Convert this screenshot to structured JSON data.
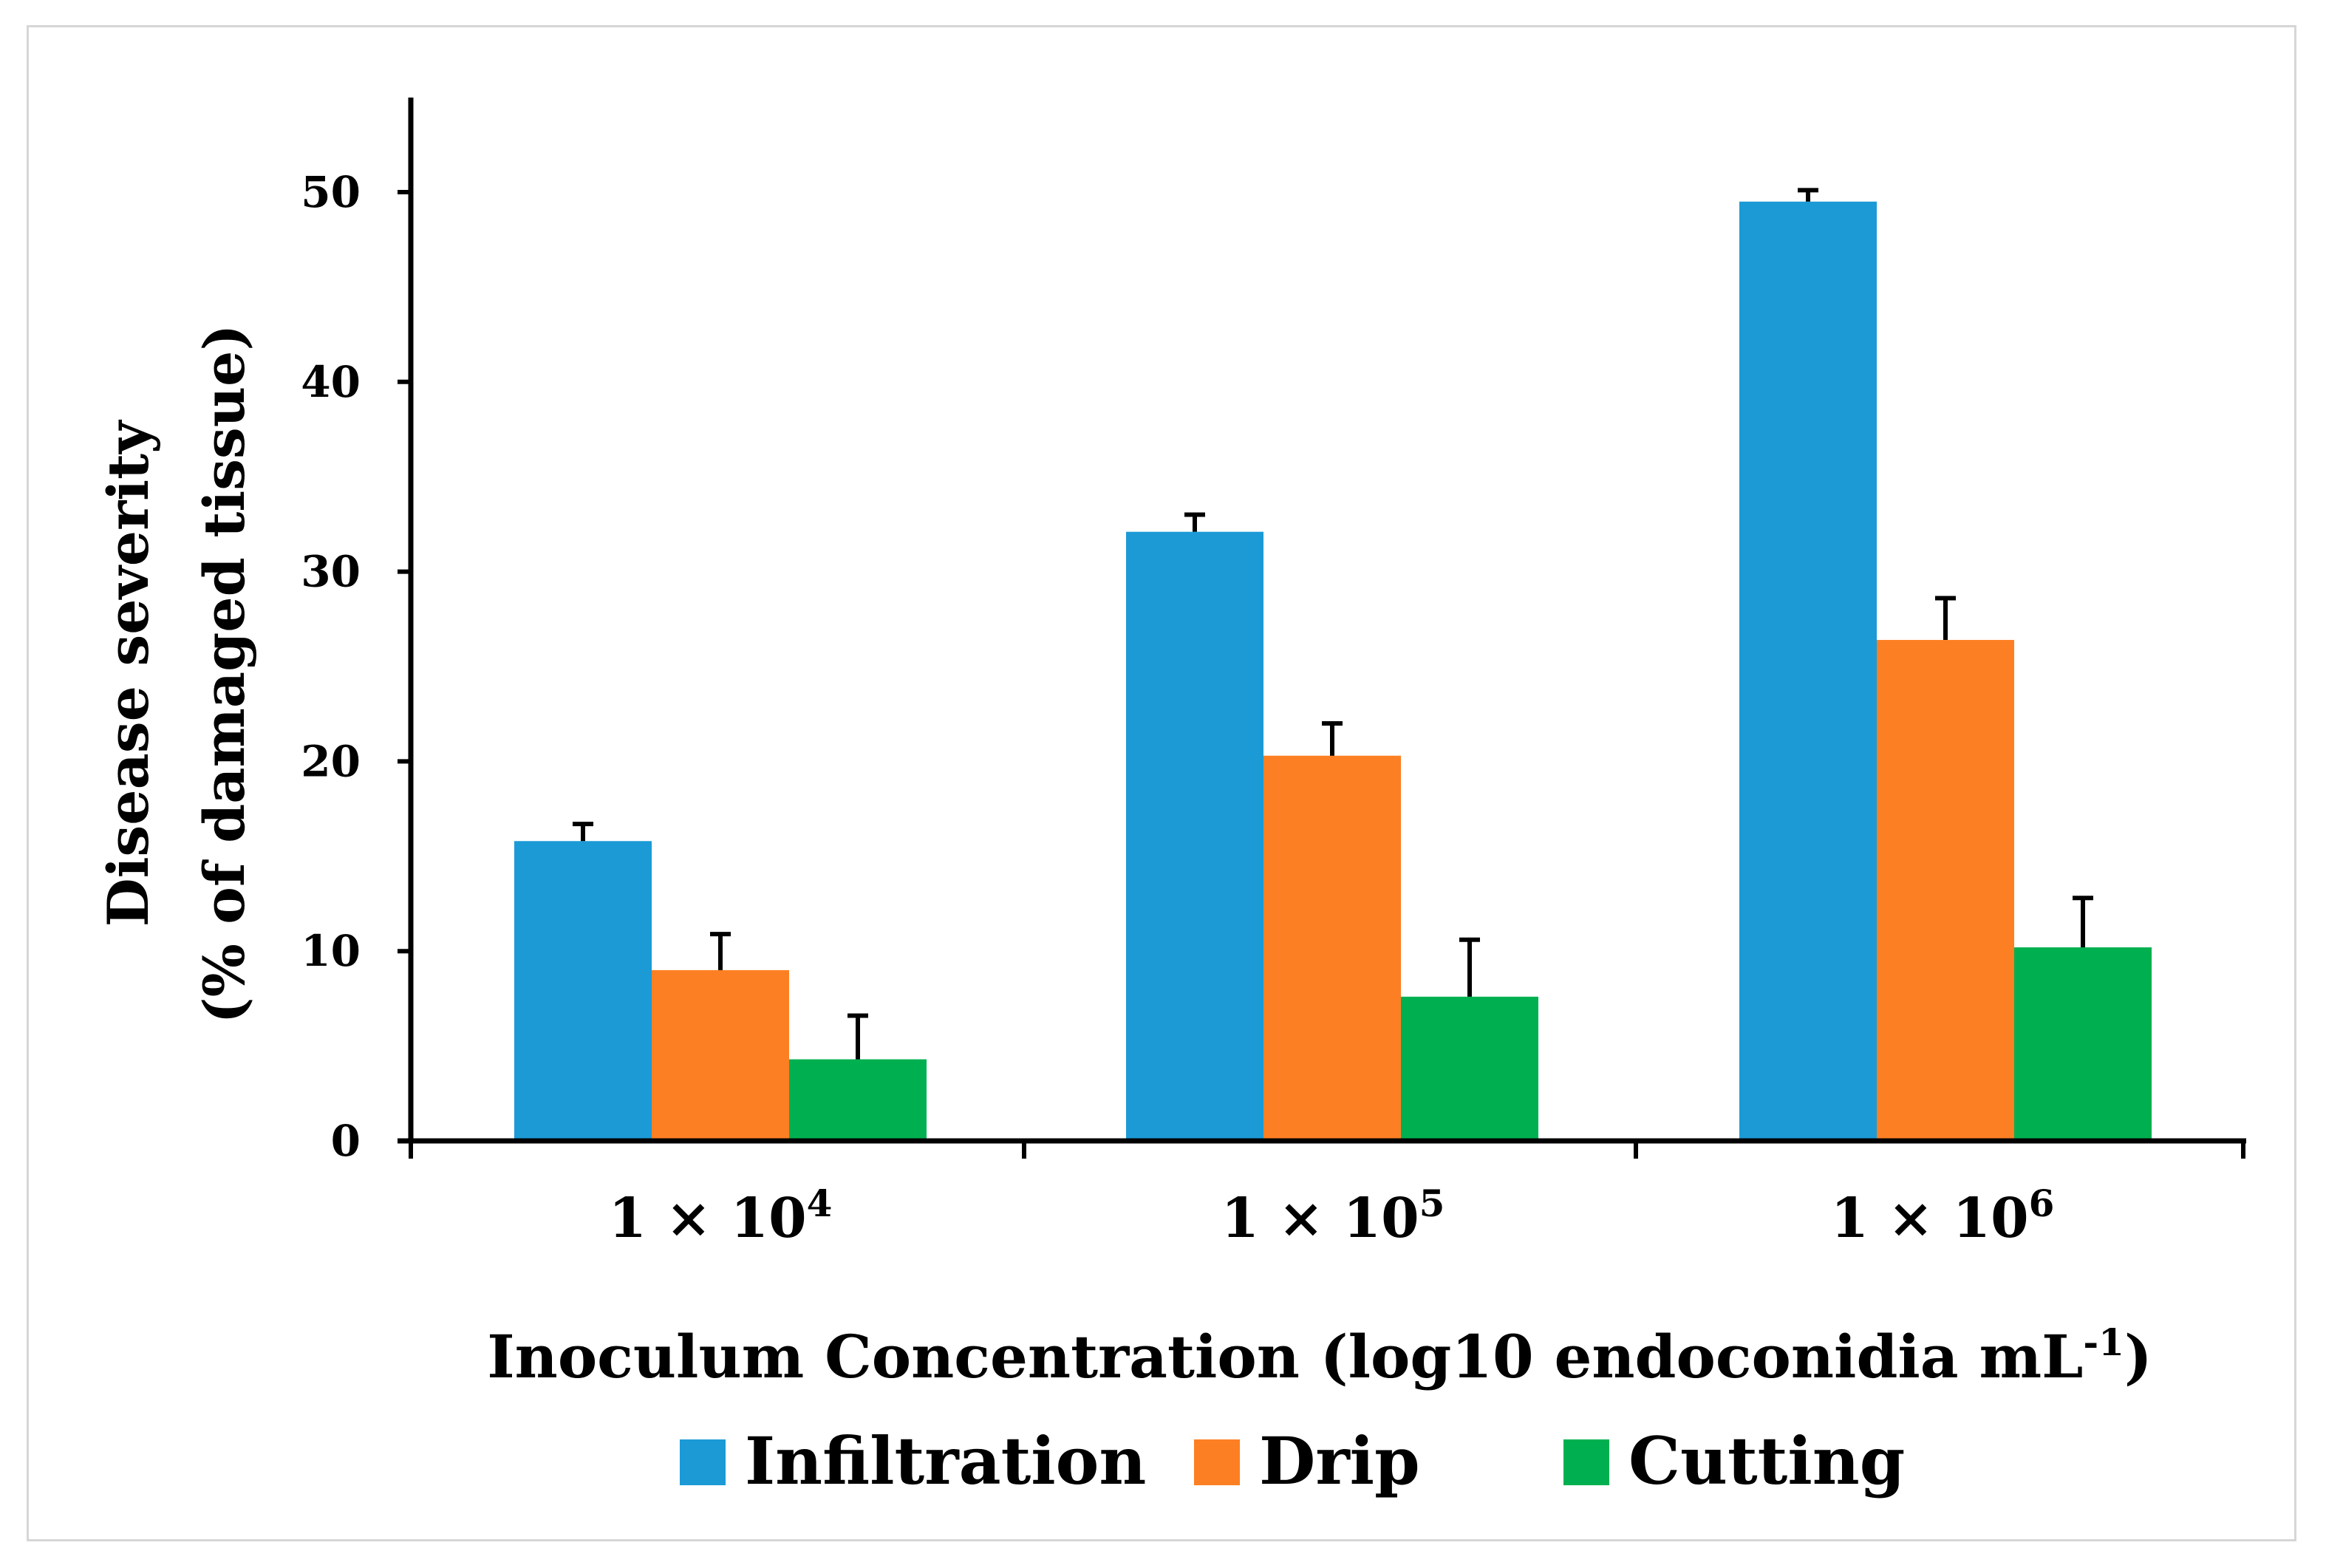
{
  "chart_data": {
    "type": "bar",
    "xlabel": "Inoculum Concentration (log10 endoconidia mL",
    "xlabel_superscript": "-1",
    "xlabel_suffix": ")",
    "ylabel_line1": "Disease severity",
    "ylabel_line2": "(% of damaged tissue)",
    "ylim": [
      0,
      55
    ],
    "yticks": [
      0,
      10,
      20,
      30,
      40,
      50
    ],
    "categories": [
      {
        "base": "1 × 10",
        "exp": "4"
      },
      {
        "base": "1 × 10",
        "exp": "5"
      },
      {
        "base": "1 × 10",
        "exp": "6"
      }
    ],
    "series": [
      {
        "name": "Infiltration",
        "color": "#1b9ad6",
        "values": [
          15.8,
          32.1,
          49.5
        ],
        "errors": [
          0.9,
          0.9,
          0.6
        ]
      },
      {
        "name": "Drip",
        "color": "#fd7f23",
        "values": [
          9.0,
          20.3,
          26.4
        ],
        "errors": [
          1.9,
          1.7,
          2.2
        ]
      },
      {
        "name": "Cutting",
        "color": "#00b050",
        "values": [
          4.3,
          7.6,
          10.2
        ],
        "errors": [
          2.3,
          3.0,
          2.6
        ]
      }
    ],
    "legend_position": "bottom-center"
  }
}
